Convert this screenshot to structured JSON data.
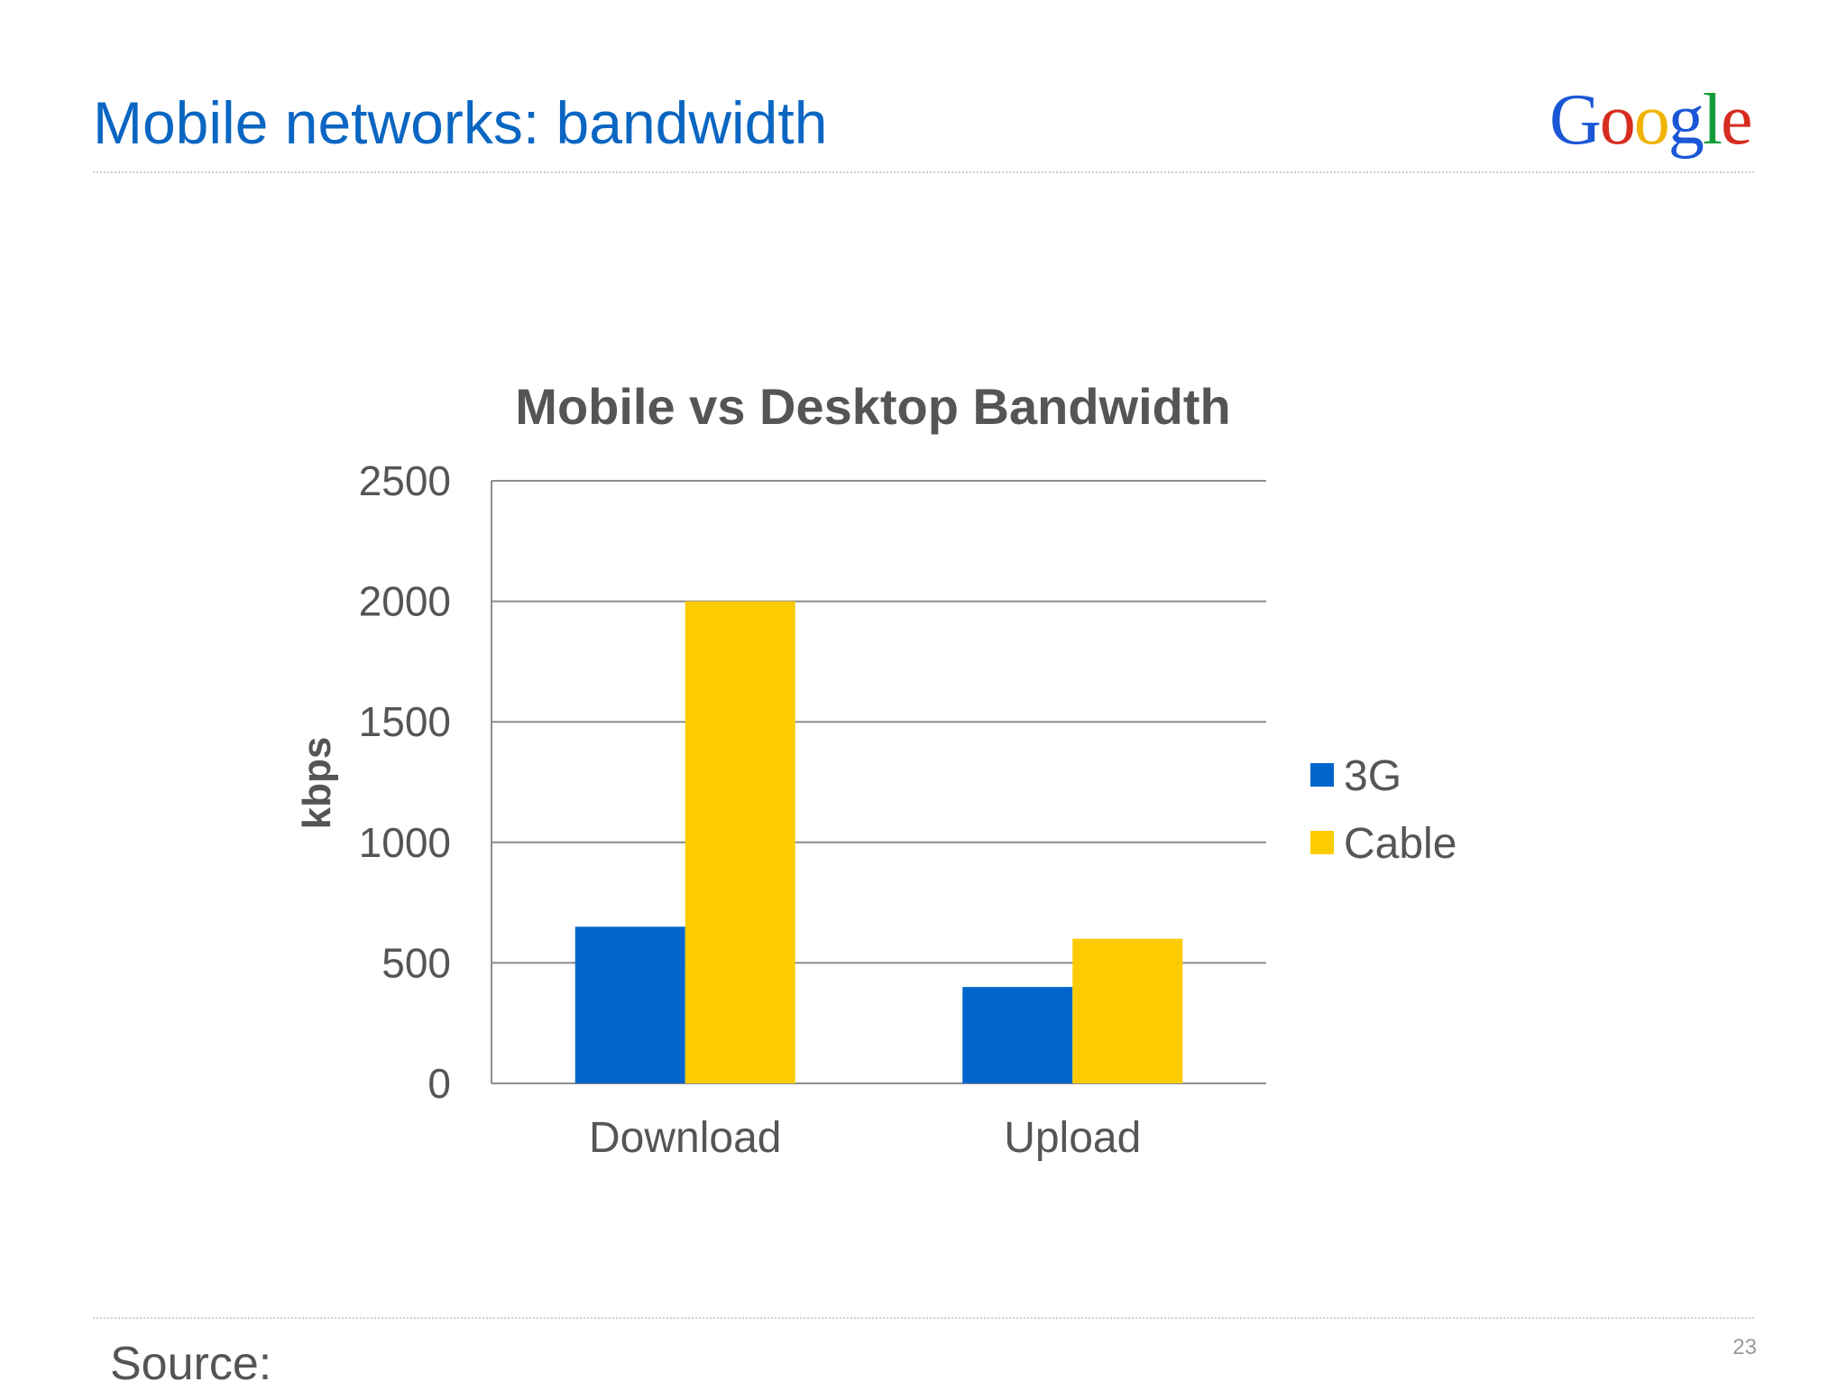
{
  "slide": {
    "title": "Mobile networks: bandwidth",
    "logo_text": "Google",
    "source_label": "Source:",
    "page_number": "23",
    "title_color": "#0a66c2"
  },
  "chart_data": {
    "type": "bar",
    "title": "Mobile vs Desktop Bandwidth",
    "xlabel": "",
    "ylabel": "kbps",
    "categories": [
      "Download",
      "Upload"
    ],
    "series": [
      {
        "name": "3G",
        "values": [
          650,
          400
        ],
        "color": "#0066cc"
      },
      {
        "name": "Cable",
        "values": [
          2000,
          600
        ],
        "color": "#fccc00"
      }
    ],
    "ylim": [
      0,
      2500
    ],
    "yticks": [
      0,
      500,
      1000,
      1500,
      2000,
      2500
    ],
    "grid": true,
    "legend_position": "right"
  }
}
